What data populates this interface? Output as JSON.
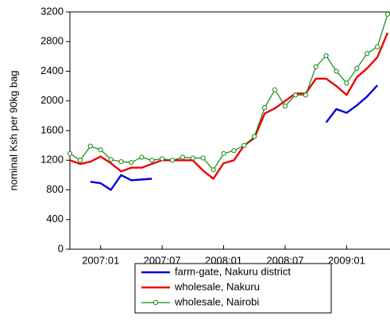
{
  "chart_data": {
    "type": "line",
    "y_label": "nominal Ksh per 90kg bag",
    "categories": [
      null,
      null,
      null,
      "2007:01",
      null,
      null,
      null,
      null,
      null,
      "2007:07",
      null,
      null,
      null,
      null,
      null,
      "2008:01",
      null,
      null,
      null,
      null,
      null,
      "2008:07",
      null,
      null,
      null,
      null,
      null,
      "2009:01",
      null,
      null,
      null,
      null
    ],
    "series": [
      {
        "name": "farm-gate, Nakuru district",
        "color": "#0000dd",
        "markers": false,
        "values": [
          null,
          null,
          910,
          890,
          800,
          1000,
          930,
          940,
          950,
          null,
          null,
          null,
          null,
          null,
          null,
          null,
          null,
          null,
          null,
          null,
          null,
          null,
          null,
          null,
          null,
          1710,
          1890,
          1840,
          1940,
          2060,
          2210,
          null
        ]
      },
      {
        "name": "wholesale, Nakuru",
        "color": "#ee0000",
        "markers": false,
        "values": [
          1200,
          1150,
          1180,
          1250,
          1160,
          1050,
          1100,
          1100,
          1150,
          1200,
          1200,
          1200,
          1200,
          1060,
          950,
          1160,
          1200,
          1400,
          1500,
          1830,
          1900,
          2000,
          2100,
          2100,
          2300,
          2300,
          2200,
          2080,
          2320,
          2440,
          2590,
          2920
        ]
      },
      {
        "name": "wholesale, Nairobi",
        "color": "#118811",
        "markers": true,
        "values": [
          1290,
          1200,
          1390,
          1340,
          1210,
          1180,
          1170,
          1240,
          1200,
          1220,
          1200,
          1240,
          1230,
          1230,
          1070,
          1290,
          1330,
          1400,
          1520,
          1910,
          2150,
          1930,
          2080,
          2080,
          2460,
          2610,
          2400,
          2240,
          2440,
          2640,
          2730,
          3170
        ]
      }
    ],
    "ylim": [
      0,
      3200
    ],
    "yticks": [
      0,
      400,
      800,
      1200,
      1600,
      2000,
      2400,
      2800,
      3200
    ],
    "grid": false
  }
}
